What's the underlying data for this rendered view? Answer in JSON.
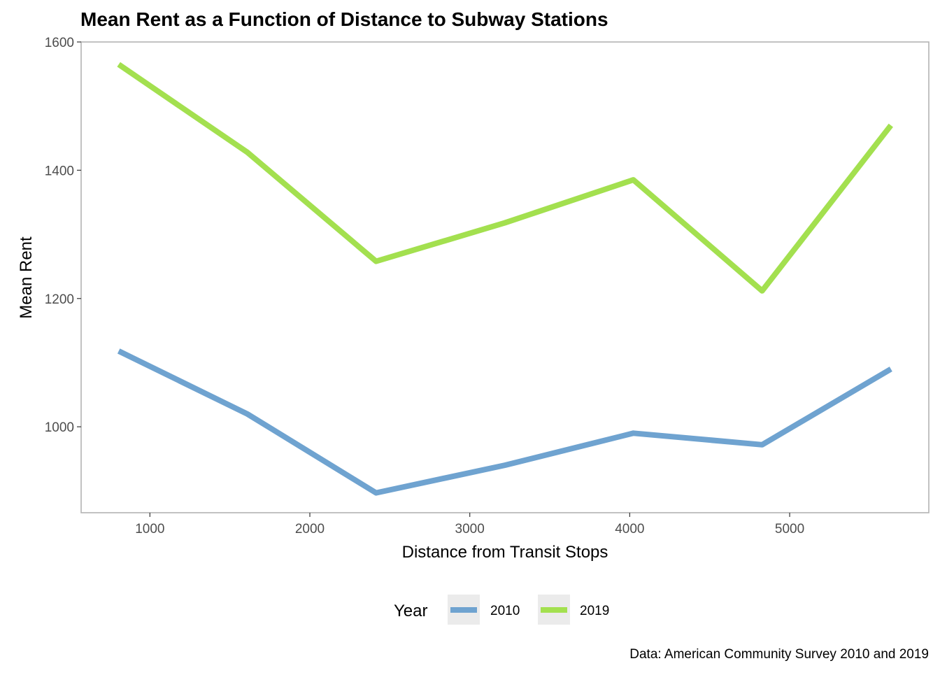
{
  "chart_data": {
    "type": "line",
    "title": "Mean Rent as a Function of Distance to Subway Stations",
    "xlabel": "Distance from Transit Stops",
    "ylabel": "Mean Rent",
    "caption": "Data: American Community Survey 2010 and 2019",
    "x": [
      805,
      1609,
      2414,
      3219,
      4023,
      4828,
      5633
    ],
    "xlim": [
      570,
      5870
    ],
    "ylim": [
      866,
      1600
    ],
    "xticks": [
      1000,
      2000,
      3000,
      4000,
      5000
    ],
    "xtick_labels": [
      "1000",
      "2000",
      "3000",
      "4000",
      "5000"
    ],
    "yticks": [
      1000,
      1200,
      1400,
      1600
    ],
    "ytick_labels": [
      "1000",
      "1200",
      "1400",
      "1600"
    ],
    "grid": false,
    "legend": {
      "title": "Year",
      "position": "bottom"
    },
    "series": [
      {
        "name": "2010",
        "color": "#6fa3d0",
        "values": [
          1118,
          1020,
          897,
          940,
          990,
          972,
          1090
        ]
      },
      {
        "name": "2019",
        "color": "#a3e04f",
        "values": [
          1565,
          1428,
          1258,
          1318,
          1385,
          1212,
          1470
        ]
      }
    ]
  }
}
